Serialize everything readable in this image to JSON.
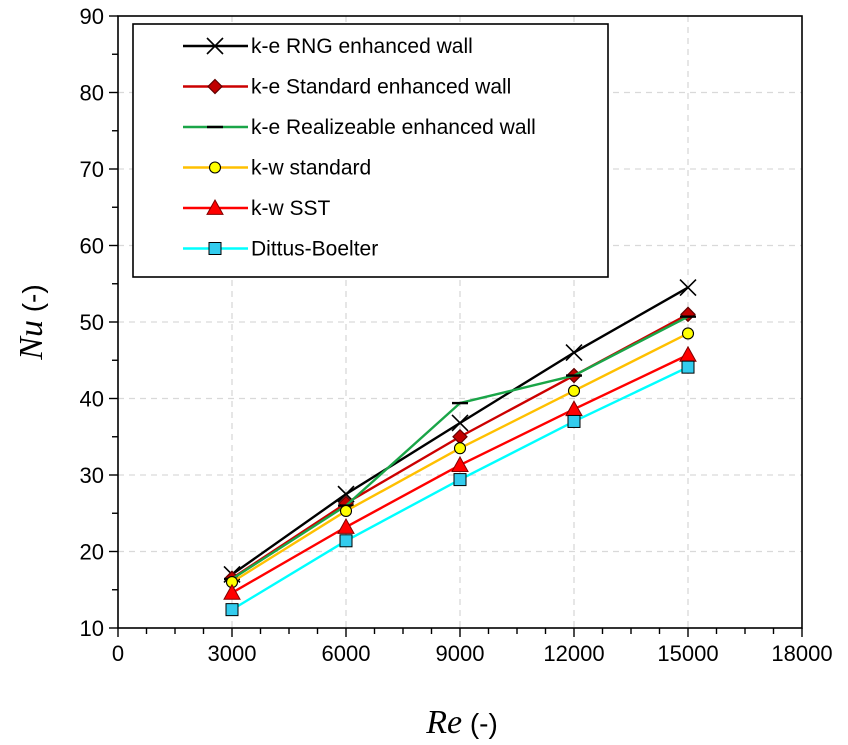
{
  "chart_data": {
    "type": "line",
    "x": [
      3000,
      6000,
      9000,
      12000,
      15000
    ],
    "xlim": [
      0,
      18000
    ],
    "ylim": [
      10,
      90
    ],
    "x_ticks": [
      "0",
      "3000",
      "6000",
      "9000",
      "12000",
      "15000",
      "18000"
    ],
    "y_ticks": [
      "10",
      "20",
      "30",
      "40",
      "50",
      "60",
      "70",
      "80",
      "90"
    ],
    "xlabel": {
      "main": "Re",
      "unit": " (-)"
    },
    "ylabel": {
      "main": "Nu",
      "unit": " (-)"
    },
    "grid": "dashed",
    "legend_placement": "top-left",
    "series": [
      {
        "name": "k-e RNG enhanced wall",
        "values": [
          17.0,
          27.5,
          36.8,
          46.0,
          54.5
        ],
        "color": "#000000",
        "marker": "x"
      },
      {
        "name": "k-e Standard enhanced wall",
        "values": [
          16.5,
          26.3,
          35.0,
          43.0,
          51.0
        ],
        "color": "#cc0000",
        "marker": "diamond",
        "fill": "#c00000"
      },
      {
        "name": "k-e Realizeable enhanced wall",
        "values": [
          16.4,
          26.0,
          39.4,
          43.0,
          50.7
        ],
        "color": "#1aa548",
        "marker": "dash"
      },
      {
        "name": "k-w standard",
        "values": [
          16.0,
          25.3,
          33.5,
          41.0,
          48.5
        ],
        "color": "#ffc000",
        "marker": "circle",
        "fill": "#ffff00"
      },
      {
        "name": "k-w SST",
        "values": [
          14.6,
          23.2,
          31.3,
          38.6,
          45.7
        ],
        "color": "#ff0000",
        "marker": "triangle",
        "fill": "#ff0000"
      },
      {
        "name": "Dittus-Boelter",
        "values": [
          12.4,
          21.4,
          29.4,
          37.0,
          44.1
        ],
        "color": "#00ffff",
        "marker": "square",
        "fill": "#33ccee"
      }
    ]
  }
}
